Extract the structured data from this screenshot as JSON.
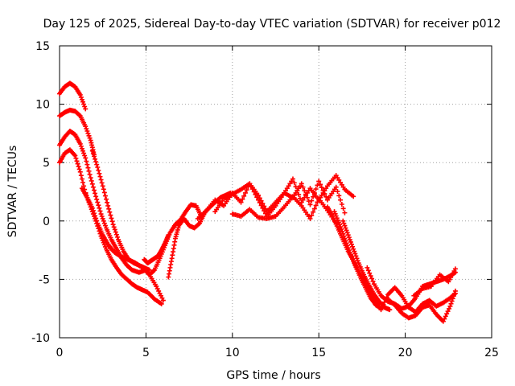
{
  "chart_data": {
    "type": "scatter",
    "title": "Day 125 of 2025, Sidereal Day-to-day VTEC variation (SDTVAR) for receiver p012",
    "xlabel": "GPS time / hours",
    "ylabel": "SDTVAR / TECUs",
    "xlim": [
      0,
      25
    ],
    "ylim": [
      -10,
      15
    ],
    "xticks": [
      0,
      5,
      10,
      15,
      20,
      25
    ],
    "yticks": [
      -10,
      -5,
      0,
      5,
      10,
      15
    ],
    "xtick_labels": [
      "0",
      "5",
      "10",
      "15",
      "20",
      "25"
    ],
    "ytick_labels": [
      "-10",
      "-5",
      "0",
      "5",
      "10",
      "15"
    ],
    "grid": true,
    "marker": "+",
    "series_color": "#ff0000",
    "series": [
      {
        "name": "trace-1",
        "x": [
          0,
          0.3,
          0.6,
          0.9,
          1.2,
          1.5,
          1.5,
          1.8,
          2.1,
          2.4,
          2.7,
          3.0,
          3.3,
          3.6,
          3.9,
          4.2,
          4.5,
          4.8,
          5.1,
          5.5,
          5.9
        ],
        "y": [
          5.0,
          5.8,
          6.1,
          5.6,
          4.2,
          2.4,
          2.4,
          1.2,
          0.0,
          -1.3,
          -2.4,
          -3.3,
          -4.0,
          -4.6,
          -5.0,
          -5.4,
          -5.7,
          -5.9,
          -6.1,
          -6.7,
          -7.1
        ]
      },
      {
        "name": "trace-2",
        "x": [
          0,
          0.3,
          0.6,
          0.9,
          1.2,
          1.5,
          1.8,
          2.1,
          2.4,
          2.7,
          3.0,
          3.3,
          3.6,
          3.9,
          4.2,
          4.6,
          5.0
        ],
        "y": [
          6.5,
          7.2,
          7.7,
          7.4,
          6.6,
          5.4,
          3.7,
          2.1,
          0.6,
          -0.6,
          -1.6,
          -2.4,
          -3.2,
          -3.8,
          -4.2,
          -4.4,
          -4.2
        ]
      },
      {
        "name": "trace-3",
        "x": [
          0,
          0.3,
          0.6,
          0.9,
          1.2,
          1.5,
          1.8,
          2.0
        ],
        "y": [
          9.0,
          9.3,
          9.5,
          9.4,
          9.0,
          8.1,
          6.9,
          5.7
        ]
      },
      {
        "name": "trace-4",
        "x": [
          0,
          0.3,
          0.6,
          0.9,
          1.2,
          1.5
        ],
        "y": [
          10.9,
          11.5,
          11.8,
          11.5,
          10.8,
          9.6
        ]
      },
      {
        "name": "trace-5",
        "x": [
          1.9,
          2.2,
          2.5,
          2.8,
          3.1,
          3.4,
          3.7,
          4.0,
          4.3,
          4.6,
          4.9,
          5.2
        ],
        "y": [
          6.0,
          4.6,
          3.0,
          1.3,
          -0.3,
          -1.6,
          -2.6,
          -3.3,
          -3.6,
          -3.8,
          -4.0,
          -4.2
        ]
      },
      {
        "name": "trace-6",
        "x": [
          1.3,
          1.6,
          1.9,
          2.2,
          2.5,
          2.8,
          3.0,
          3.2,
          3.5,
          3.8,
          4.1,
          4.4,
          4.8,
          5.2,
          5.6,
          6.0
        ],
        "y": [
          2.8,
          2.0,
          1.1,
          -0.2,
          -1.2,
          -2.0,
          -2.4,
          -2.7,
          -3.0,
          -3.2,
          -3.4,
          -3.6,
          -4.0,
          -4.6,
          -5.6,
          -6.8
        ]
      },
      {
        "name": "trace-7",
        "x": [
          4.9,
          5.1,
          5.3,
          5.5,
          5.7,
          5.9,
          6.1,
          6.3
        ],
        "y": [
          -3.3,
          -3.6,
          -3.4,
          -3.2,
          -3.0,
          -2.5,
          -1.9,
          -1.2
        ]
      },
      {
        "name": "trace-8",
        "x": [
          5.2,
          5.5,
          5.8,
          6.1,
          6.4,
          6.7,
          7.0,
          7.3,
          7.6,
          7.9,
          8.2
        ],
        "y": [
          -4.6,
          -4.2,
          -3.2,
          -2.1,
          -1.0,
          -0.3,
          0.1,
          0.8,
          1.4,
          1.3,
          0.4
        ]
      },
      {
        "name": "trace-9",
        "x": [
          6.3,
          6.5,
          6.7,
          6.9,
          7.2,
          7.5,
          7.8,
          8.1,
          8.4,
          8.7,
          9.0,
          9.3,
          9.6,
          9.9
        ],
        "y": [
          -4.8,
          -3.2,
          -1.5,
          -0.4,
          0.2,
          -0.4,
          -0.6,
          -0.2,
          0.7,
          1.2,
          1.6,
          2.0,
          2.2,
          2.4
        ]
      },
      {
        "name": "trace-10",
        "x": [
          8.0,
          8.5,
          9.0,
          9.5,
          10.0,
          10.5,
          11.0,
          11.5,
          12.0,
          12.5,
          13.0,
          13.5,
          14.0,
          14.5,
          15.0,
          15.5,
          16.0,
          16.5,
          17.0
        ],
        "y": [
          0.2,
          0.9,
          1.8,
          1.3,
          2.4,
          1.6,
          3.2,
          1.8,
          0.4,
          1.3,
          2.4,
          3.6,
          1.6,
          2.8,
          1.8,
          3.0,
          3.9,
          2.7,
          2.1
        ]
      },
      {
        "name": "trace-11",
        "x": [
          9.0,
          9.5,
          10.0,
          10.5,
          11.0,
          11.5,
          12.0,
          12.5,
          13.0,
          13.5,
          14.0,
          14.5,
          15.0,
          15.5,
          16.0,
          16.5
        ],
        "y": [
          0.8,
          1.9,
          2.3,
          2.7,
          3.2,
          2.2,
          0.8,
          1.6,
          2.4,
          2.0,
          3.2,
          1.4,
          3.4,
          1.8,
          2.9,
          0.7
        ]
      },
      {
        "name": "trace-12",
        "x": [
          10.0,
          10.5,
          11.0,
          11.5,
          12.0,
          12.5,
          13.0,
          13.5,
          14.0,
          14.5,
          15.0,
          15.5,
          16.0
        ],
        "y": [
          0.6,
          0.4,
          1.0,
          0.3,
          0.2,
          0.4,
          1.2,
          2.1,
          1.3,
          0.2,
          1.9,
          0.9,
          -0.2
        ]
      },
      {
        "name": "trace-13",
        "x": [
          15.5,
          15.8,
          16.1,
          16.4,
          16.7,
          17.0,
          17.3,
          17.6,
          17.9,
          18.2,
          18.5
        ],
        "y": [
          1.2,
          0.4,
          -0.6,
          -1.6,
          -2.6,
          -3.4,
          -4.3,
          -5.1,
          -6.0,
          -6.6,
          -7.1
        ]
      },
      {
        "name": "trace-14",
        "x": [
          15.9,
          16.2,
          16.5,
          16.8,
          17.1,
          17.4,
          17.7,
          18.0,
          18.3,
          18.6
        ],
        "y": [
          0.8,
          -0.3,
          -1.5,
          -2.7,
          -3.8,
          -4.8,
          -5.7,
          -6.6,
          -7.2,
          -7.5
        ]
      },
      {
        "name": "trace-15",
        "x": [
          16.4,
          16.7,
          17.0,
          17.3,
          17.6,
          17.9,
          18.2,
          18.5,
          18.8,
          19.1
        ],
        "y": [
          0.0,
          -1.2,
          -2.4,
          -3.6,
          -4.6,
          -5.5,
          -6.3,
          -6.9,
          -7.4,
          -7.6
        ]
      },
      {
        "name": "trace-16",
        "x": [
          17.8,
          18.2,
          18.6,
          19.0,
          19.4,
          19.8,
          20.2,
          20.6,
          21.0,
          21.4,
          21.8,
          22.2,
          22.6,
          22.9
        ],
        "y": [
          -4.0,
          -5.4,
          -6.4,
          -6.9,
          -7.1,
          -7.5,
          -7.3,
          -6.6,
          -5.6,
          -5.4,
          -5.2,
          -5.0,
          -4.7,
          -4.4
        ]
      },
      {
        "name": "trace-17",
        "x": [
          18.6,
          19.0,
          19.4,
          19.8,
          20.2,
          20.6,
          21.0,
          21.4,
          21.8,
          22.2,
          22.6,
          22.9
        ],
        "y": [
          -7.6,
          -6.3,
          -5.7,
          -6.4,
          -7.4,
          -7.8,
          -7.1,
          -6.8,
          -7.3,
          -7.0,
          -6.6,
          -6.2
        ]
      },
      {
        "name": "trace-18",
        "x": [
          19.0,
          19.4,
          19.8,
          20.2,
          20.6,
          21.0,
          21.4,
          21.8,
          22.2,
          22.6,
          22.9
        ],
        "y": [
          -6.7,
          -7.2,
          -7.9,
          -8.3,
          -8.1,
          -7.4,
          -7.2,
          -8.0,
          -8.6,
          -7.3,
          -6.0
        ]
      },
      {
        "name": "trace-19",
        "x": [
          20.5,
          21.0,
          21.5,
          22.0,
          22.5,
          22.9
        ],
        "y": [
          -6.4,
          -5.8,
          -5.6,
          -4.6,
          -5.2,
          -4.1
        ]
      }
    ]
  }
}
